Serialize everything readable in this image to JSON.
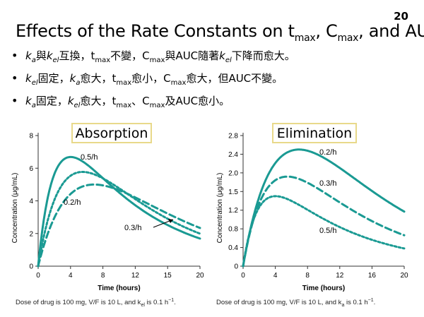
{
  "slide": {
    "number": "20",
    "title": {
      "pre": "Effects of the Rate Constants on t",
      "sub1": "max",
      "mid1": ", C",
      "sub2": "max",
      "post": ", and AUC"
    }
  },
  "bullets": [
    {
      "marker": "•",
      "parts": [
        {
          "t": "k",
          "i": true
        },
        {
          "t": "a",
          "sub": true,
          "i": true
        },
        {
          "t": "與"
        },
        {
          "t": "k",
          "i": true
        },
        {
          "t": "el",
          "sub": true,
          "i": true
        },
        {
          "t": "互換，t"
        },
        {
          "t": "max",
          "sub": true
        },
        {
          "t": "不變，C"
        },
        {
          "t": "max",
          "sub": true
        },
        {
          "t": "與AUC隨著"
        },
        {
          "t": "k",
          "i": true
        },
        {
          "t": "el",
          "sub": true,
          "i": true
        },
        {
          "t": "下降而愈大。"
        }
      ]
    },
    {
      "marker": "•",
      "parts": [
        {
          "t": "k",
          "i": true
        },
        {
          "t": "el",
          "sub": true,
          "i": true
        },
        {
          "t": "固定，"
        },
        {
          "t": "k",
          "i": true
        },
        {
          "t": "a",
          "sub": true,
          "i": true
        },
        {
          "t": "愈大，t"
        },
        {
          "t": "max",
          "sub": true
        },
        {
          "t": "愈小，C"
        },
        {
          "t": "max",
          "sub": true
        },
        {
          "t": "愈大，但AUC不變。"
        }
      ]
    },
    {
      "marker": "•",
      "parts": [
        {
          "t": "k",
          "i": true
        },
        {
          "t": "a",
          "sub": true,
          "i": true
        },
        {
          "t": "固定，"
        },
        {
          "t": "k",
          "i": true
        },
        {
          "t": "el",
          "sub": true,
          "i": true
        },
        {
          "t": "愈大，t"
        },
        {
          "t": "max",
          "sub": true
        },
        {
          "t": "、C"
        },
        {
          "t": "max",
          "sub": true
        },
        {
          "t": "及AUC愈小。"
        }
      ]
    }
  ],
  "colors": {
    "curve": "#1a9a93",
    "label_box": "#e8d98a",
    "axis": "#333333"
  },
  "chart_data": [
    {
      "type": "line",
      "title": "Absorption",
      "xlabel": "Time (hours)",
      "ylabel": "Concentration (μg/mL)",
      "xlim": [
        0,
        20
      ],
      "ylim": [
        0,
        8
      ],
      "xticks": [
        0,
        4,
        8,
        12,
        15,
        20
      ],
      "yticks": [
        0,
        2,
        4,
        6,
        8
      ],
      "tick_labels_x": [
        "0",
        "4",
        "8",
        "12",
        "15",
        "20"
      ],
      "tick_labels_y": [
        "0",
        "2",
        "4",
        "6",
        "8"
      ],
      "model": {
        "dose_mg": 100,
        "vf_L": 10,
        "kel": 0.1
      },
      "series": [
        {
          "name": "0.5/h",
          "ka": 0.5,
          "style": "solid"
        },
        {
          "name": "0.2/h",
          "ka": 0.2,
          "style": "dash"
        },
        {
          "name": "0.3/h",
          "ka": 0.3,
          "style": "dot"
        }
      ],
      "labels": [
        "0.5/h",
        "0.2/h",
        "0.3/h"
      ],
      "footnote": {
        "pre": "Dose of drug is 100 mg, V/F is 10 L, and k",
        "sub": "el",
        "mid": " is 0.1 h",
        "sup": "−1",
        "post": "."
      }
    },
    {
      "type": "line",
      "title": "Elimination",
      "xlabel": "Time (hours)",
      "ylabel": "Concentration (μg/mL)",
      "xlim": [
        0,
        20
      ],
      "ylim": [
        0,
        2.8
      ],
      "xticks": [
        0,
        4,
        8,
        12,
        16,
        20
      ],
      "yticks": [
        0,
        0.4,
        0.8,
        1.2,
        1.5,
        2.0,
        2.4,
        2.8
      ],
      "tick_labels_x": [
        "0",
        "4",
        "8",
        "12",
        "16",
        "20"
      ],
      "tick_labels_y": [
        "0",
        "0.4",
        "0.8",
        "1.2",
        "1.5",
        "2.0",
        "2.4",
        "2.8"
      ],
      "model": {
        "dose_mg": 100,
        "vf_L": 10,
        "ka": 0.1
      },
      "series": [
        {
          "name": "0.2/h",
          "kel": 0.2,
          "factor": 1.0,
          "style": "solid"
        },
        {
          "name": "0.3/h",
          "kel": 0.3,
          "factor": 0.76,
          "style": "dash"
        },
        {
          "name": "0.5/h",
          "kel": 0.5,
          "factor": 0.6,
          "style": "dot"
        }
      ],
      "labels": [
        "0.2/h",
        "0.3/h",
        "0.5/h"
      ],
      "footnote": {
        "pre": "Dose of drug is 100 mg, V/F is 10 L, and k",
        "sub": "a",
        "mid": " is 0.1 h",
        "sup": "−1",
        "post": "."
      }
    }
  ]
}
